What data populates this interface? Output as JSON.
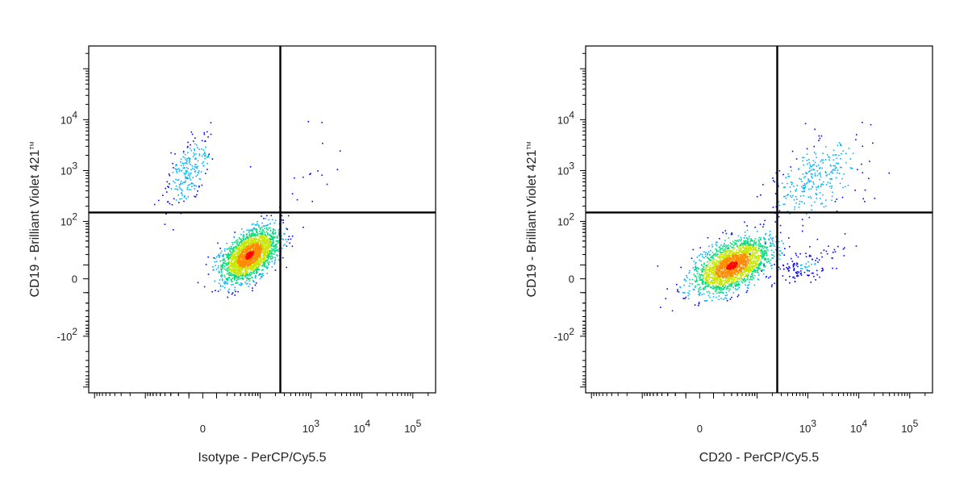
{
  "chart_data": [
    {
      "type": "scatter",
      "subtype": "flow-cytometry-density-plot",
      "xlabel": "Isotype - PerCP/Cy5.5",
      "ylabel": "CD19 - Brilliant Violet 421",
      "ylabel_tm": "TM",
      "x_scale": "biexponential",
      "y_scale": "biexponential",
      "x_ticks": [
        {
          "label": "0",
          "value": 0
        },
        {
          "label": "10",
          "exp": "3",
          "value": 1000
        },
        {
          "label": "10",
          "exp": "4",
          "value": 10000
        },
        {
          "label": "10",
          "exp": "5",
          "value": 100000
        }
      ],
      "y_ticks": [
        {
          "label": "-10",
          "exp": "2",
          "value": -100
        },
        {
          "label": "0",
          "value": 0
        },
        {
          "label": "10",
          "exp": "2",
          "value": 100
        },
        {
          "label": "10",
          "exp": "3",
          "value": 1000
        },
        {
          "label": "10",
          "exp": "4",
          "value": 10000
        }
      ],
      "gate": {
        "x": 250,
        "y": 150
      },
      "grid": false,
      "colors": [
        "#0000ff",
        "#00b4ff",
        "#00dc78",
        "#c8e600",
        "#ff8c00",
        "#ff0000"
      ],
      "populations": [
        {
          "name": "",
          "center": [
            60,
            20
          ],
          "spread": [
            0.22,
            0.24
          ],
          "count": 2300,
          "max_density": 1.0
        },
        {
          "name": "",
          "center": [
            -10,
            1000
          ],
          "spread": [
            0.18,
            0.32
          ],
          "count": 230,
          "max_density": 0.22
        },
        {
          "name": "",
          "center": [
            700,
            700
          ],
          "spread": [
            0.35,
            0.55
          ],
          "count": 18,
          "max_density": 0.05
        }
      ]
    },
    {
      "type": "scatter",
      "subtype": "flow-cytometry-density-plot",
      "xlabel": "CD20 - PerCP/Cy5.5",
      "ylabel": "CD19 - Brilliant Violet 421",
      "ylabel_tm": "TM",
      "x_scale": "biexponential",
      "y_scale": "biexponential",
      "x_ticks": [
        {
          "label": "0",
          "value": 0
        },
        {
          "label": "10",
          "exp": "3",
          "value": 1000
        },
        {
          "label": "10",
          "exp": "4",
          "value": 10000
        },
        {
          "label": "10",
          "exp": "5",
          "value": 100000
        }
      ],
      "y_ticks": [
        {
          "label": "-10",
          "exp": "2",
          "value": -100
        },
        {
          "label": "0",
          "value": 0
        },
        {
          "label": "10",
          "exp": "2",
          "value": 100
        },
        {
          "label": "10",
          "exp": "3",
          "value": 1000
        },
        {
          "label": "10",
          "exp": "4",
          "value": 10000
        }
      ],
      "gate": {
        "x": 250,
        "y": 150
      },
      "grid": false,
      "colors": [
        "#0000ff",
        "#00b4ff",
        "#00dc78",
        "#c8e600",
        "#ff8c00",
        "#ff0000"
      ],
      "populations": [
        {
          "name": "",
          "center": [
            30,
            10
          ],
          "spread": [
            0.3,
            0.24
          ],
          "count": 2200,
          "max_density": 1.0
        },
        {
          "name": "",
          "center": [
            1500,
            700
          ],
          "spread": [
            0.35,
            0.38
          ],
          "count": 300,
          "max_density": 0.25
        },
        {
          "name": "",
          "center": [
            900,
            10
          ],
          "spread": [
            0.28,
            0.18
          ],
          "count": 130,
          "max_density": 0.12
        }
      ]
    }
  ]
}
